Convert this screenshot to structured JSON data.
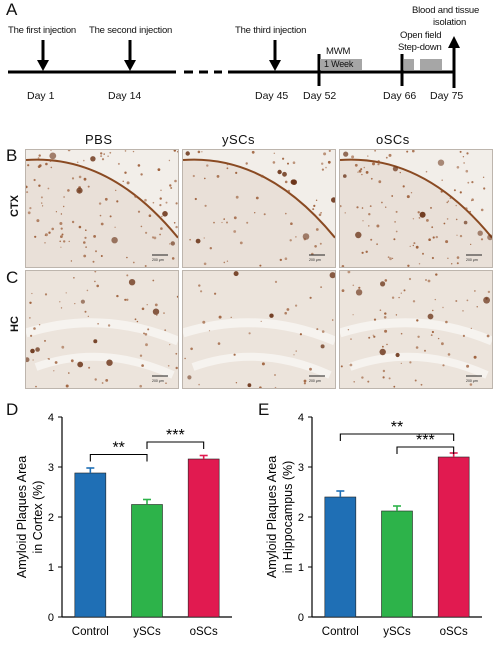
{
  "panels": {
    "a": "A",
    "b": "B",
    "c": "C",
    "d": "D",
    "e": "E"
  },
  "timeline": {
    "events": [
      {
        "label": "The first injection",
        "day": "Day 1"
      },
      {
        "label": "The second injection",
        "day": "Day 14"
      },
      {
        "label": "The third injection",
        "day": "Day 45"
      }
    ],
    "day52": "Day 52",
    "mwm_label": "MWM",
    "mwm_box": "1 Week",
    "day66": "Day 66",
    "open_field": "Open field",
    "step_down": "Step-down",
    "day75": "Day 75",
    "blood_line1": "Blood and tissue",
    "blood_line2": "isolation"
  },
  "micrographs": {
    "columns": [
      "PBS",
      "ySCs",
      "oSCs"
    ],
    "rows": [
      "CTX",
      "HC"
    ],
    "scale_label": "200 μm"
  },
  "chart_data": [
    {
      "type": "bar",
      "panel": "D",
      "categories": [
        "Control",
        "ySCs",
        "oSCs"
      ],
      "values": [
        2.88,
        2.25,
        3.16
      ],
      "errors": [
        0.1,
        0.1,
        0.07
      ],
      "colors": [
        "#1f6fb5",
        "#2db34a",
        "#e11a50"
      ],
      "ylabel_line1": "Amyloid Plaques Area",
      "ylabel_line2": "in Cortex (%)",
      "ylim": [
        0,
        4
      ],
      "yticks": [
        "0",
        "1",
        "2",
        "3",
        "4"
      ],
      "significance": [
        {
          "from": 0,
          "to": 1,
          "label": "**"
        },
        {
          "from": 1,
          "to": 2,
          "label": "***"
        }
      ]
    },
    {
      "type": "bar",
      "panel": "E",
      "categories": [
        "Control",
        "ySCs",
        "oSCs"
      ],
      "values": [
        2.4,
        2.12,
        3.2
      ],
      "errors": [
        0.12,
        0.1,
        0.08
      ],
      "colors": [
        "#1f6fb5",
        "#2db34a",
        "#e11a50"
      ],
      "ylabel_line1": "Amyloid Plaques Area",
      "ylabel_line2": "in Hippocampus (%)",
      "ylim": [
        0,
        4
      ],
      "yticks": [
        "0",
        "1",
        "2",
        "3",
        "4"
      ],
      "significance": [
        {
          "from": 0,
          "to": 2,
          "label": "**"
        },
        {
          "from": 1,
          "to": 2,
          "label": "***"
        }
      ]
    }
  ]
}
